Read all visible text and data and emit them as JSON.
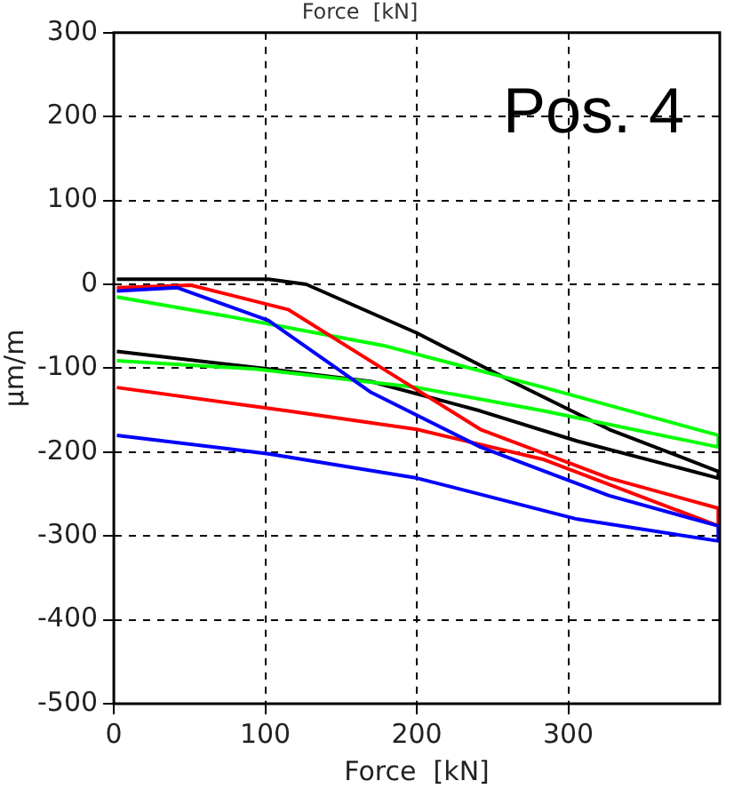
{
  "chart_data": {
    "type": "line",
    "title": "Force  [kN]",
    "xlabel": "Force  [kN]",
    "ylabel": "µm/m",
    "annotations": [
      "Pos. 4"
    ],
    "xlim": [
      0,
      400
    ],
    "xticks": [
      0,
      100,
      200,
      300
    ],
    "ylim": [
      -500,
      300
    ],
    "yticks": [
      -500,
      -400,
      -300,
      -200,
      -100,
      0,
      100,
      200,
      300
    ],
    "grid": true,
    "legend": false,
    "marker": "none",
    "line_style": "solid",
    "series": [
      {
        "color": "#0000ff",
        "x": [
          2,
          42,
          102,
          170,
          242,
          327,
          399,
          399,
          306,
          200,
          102,
          2
        ],
        "values": [
          -8,
          -4,
          -43,
          -129,
          -194,
          -252,
          -288,
          -306,
          -280,
          -231,
          -202,
          -180
        ]
      },
      {
        "color": "#ff0000",
        "x": [
          2,
          51,
          115,
          178,
          242,
          327,
          399,
          399,
          284,
          200,
          115,
          2
        ],
        "values": [
          -4,
          -1,
          -30,
          -101,
          -173,
          -231,
          -267,
          -288,
          -209,
          -173,
          -151,
          -123
        ]
      },
      {
        "color": "#00ff00",
        "x": [
          2,
          72,
          178,
          284,
          399,
          399,
          284,
          200,
          93,
          2
        ],
        "values": [
          -15,
          -37,
          -73,
          -123,
          -180,
          -194,
          -151,
          -123,
          -101,
          -91
        ]
      },
      {
        "color": "#000000",
        "x": [
          2,
          102,
          127,
          200,
          263,
          327,
          399,
          399,
          306,
          242,
          170,
          102,
          2
        ],
        "values": [
          6,
          6,
          0,
          -58,
          -116,
          -173,
          -223,
          -231,
          -187,
          -151,
          -116,
          -101,
          -80
        ]
      }
    ]
  }
}
